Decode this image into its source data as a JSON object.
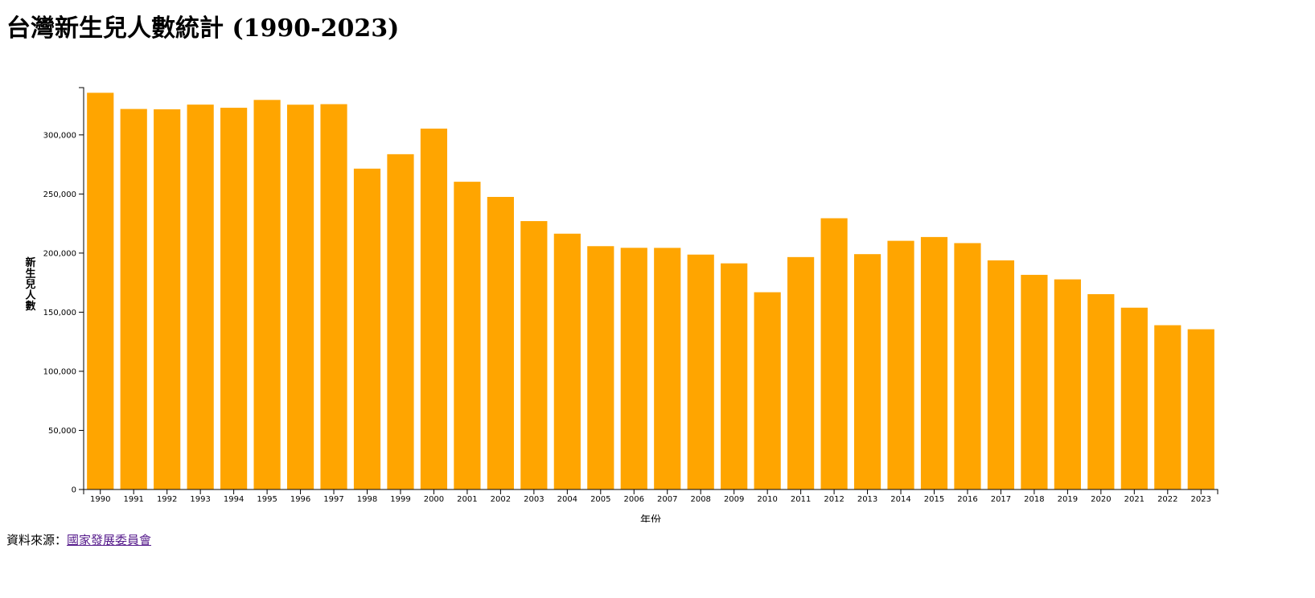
{
  "title": "台灣新生兒人數統計 (1990-2023)",
  "source": {
    "label": "資料來源：",
    "link_text": "國家發展委員會"
  },
  "chart_data": {
    "type": "bar",
    "title": "台灣新生兒人數統計 (1990-2023)",
    "xlabel": "年份",
    "ylabel": "新生兒人數",
    "ylim": [
      0,
      340000
    ],
    "yticks": [
      0,
      50000,
      100000,
      150000,
      200000,
      250000,
      300000
    ],
    "ytick_labels": [
      "0",
      "50,000",
      "100,000",
      "150,000",
      "200,000",
      "250,000",
      "300,000"
    ],
    "bar_color": "#ffa500",
    "grid": false,
    "categories": [
      "1990",
      "1991",
      "1992",
      "1993",
      "1994",
      "1995",
      "1996",
      "1997",
      "1998",
      "1999",
      "2000",
      "2001",
      "2002",
      "2003",
      "2004",
      "2005",
      "2006",
      "2007",
      "2008",
      "2009",
      "2010",
      "2011",
      "2012",
      "2013",
      "2014",
      "2015",
      "2016",
      "2017",
      "2018",
      "2019",
      "2020",
      "2021",
      "2022",
      "2023"
    ],
    "values": [
      335618,
      321932,
      321632,
      325613,
      322938,
      329581,
      325545,
      326002,
      271450,
      283661,
      305312,
      260354,
      247530,
      227070,
      216419,
      205854,
      204459,
      204414,
      198733,
      191310,
      166886,
      196627,
      229481,
      199113,
      210383,
      213598,
      208440,
      193844,
      181601,
      177767,
      165249,
      153820,
      138986,
      135571
    ]
  }
}
